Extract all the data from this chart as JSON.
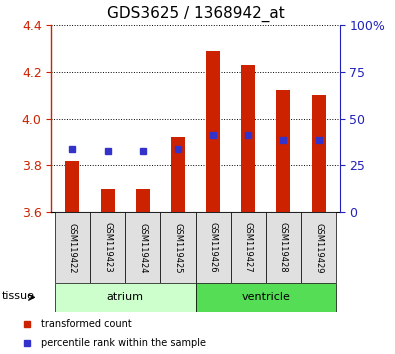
{
  "title": "GDS3625 / 1368942_at",
  "samples": [
    "GSM119422",
    "GSM119423",
    "GSM119424",
    "GSM119425",
    "GSM119426",
    "GSM119427",
    "GSM119428",
    "GSM119429"
  ],
  "transformed_count": [
    3.82,
    3.7,
    3.7,
    3.92,
    4.29,
    4.23,
    4.12,
    4.1
  ],
  "percentile_rank": [
    3.87,
    3.86,
    3.86,
    3.87,
    3.93,
    3.93,
    3.91,
    3.91
  ],
  "bar_bottom": 3.6,
  "ylim": [
    3.6,
    4.4
  ],
  "y2lim": [
    0,
    100
  ],
  "yticks": [
    3.6,
    3.8,
    4.0,
    4.2,
    4.4
  ],
  "y2ticks": [
    0,
    25,
    50,
    75,
    100
  ],
  "bar_color": "#cc2200",
  "dot_color": "#3333cc",
  "groups": [
    {
      "name": "atrium",
      "indices": [
        0,
        1,
        2,
        3
      ],
      "color": "#ccffcc"
    },
    {
      "name": "ventricle",
      "indices": [
        4,
        5,
        6,
        7
      ],
      "color": "#55dd55"
    }
  ],
  "tissue_label": "tissue",
  "legend_items": [
    {
      "label": "transformed count",
      "color": "#cc2200"
    },
    {
      "label": "percentile rank within the sample",
      "color": "#3333cc"
    }
  ],
  "title_fontsize": 11,
  "axis_label_color_left": "#cc2200",
  "axis_label_color_right": "#2222bb",
  "bg_color": "#e0e0e0",
  "bar_width": 0.4,
  "dot_size": 25
}
